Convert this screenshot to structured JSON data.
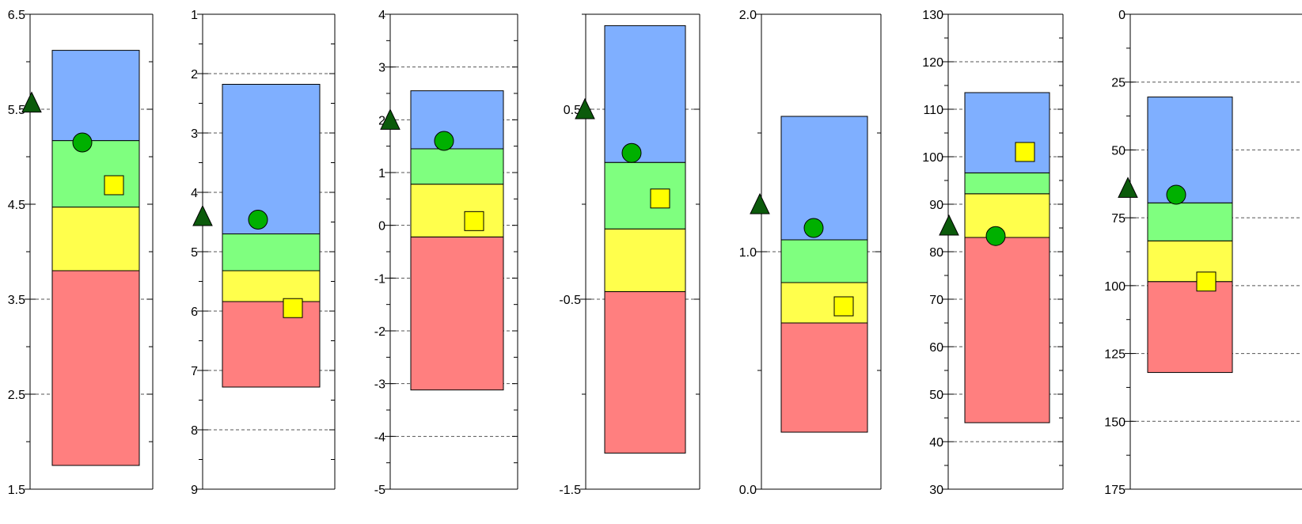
{
  "chart_data": [
    {
      "type": "bar",
      "title": "",
      "xlabel": "",
      "ylabel": "",
      "ylim": [
        1.5,
        6.5
      ],
      "reversed": false,
      "major_ticks": [
        1.5,
        2.5,
        3.5,
        4.5,
        5.5,
        6.5
      ],
      "tick_labels": [
        "1.5",
        "2.5",
        "3.5",
        "4.5",
        "5.5",
        "6.5"
      ],
      "minor_ticks": [
        2.0,
        3.0,
        4.0,
        5.0,
        6.0
      ],
      "dashed_lines": [
        5.5,
        3.5,
        2.5
      ],
      "bands": [
        {
          "color": "red",
          "from": 1.75,
          "to": 3.8
        },
        {
          "color": "yellow",
          "from": 3.8,
          "to": 4.47
        },
        {
          "color": "green",
          "from": 4.47,
          "to": 5.17
        },
        {
          "color": "blue",
          "from": 5.17,
          "to": 6.12
        }
      ],
      "markers": {
        "triangle": 5.57,
        "circle": 5.15,
        "square": 4.7
      }
    },
    {
      "type": "bar",
      "title": "",
      "xlabel": "",
      "ylabel": "",
      "ylim": [
        1,
        9
      ],
      "reversed": true,
      "major_ticks": [
        1,
        2,
        3,
        4,
        5,
        6,
        7,
        8,
        9
      ],
      "tick_labels": [
        "1",
        "2",
        "3",
        "4",
        "5",
        "6",
        "7",
        "8",
        "9"
      ],
      "minor_ticks": [
        1.5,
        2.5,
        3.5,
        4.5,
        5.5,
        6.5,
        7.5,
        8.5
      ],
      "dashed_lines": [
        2,
        3,
        4,
        5,
        6,
        7,
        8
      ],
      "bands": [
        {
          "color": "red",
          "from": 5.84,
          "to": 7.28
        },
        {
          "color": "yellow",
          "from": 5.32,
          "to": 5.84
        },
        {
          "color": "green",
          "from": 4.7,
          "to": 5.32
        },
        {
          "color": "blue",
          "from": 2.18,
          "to": 4.7
        }
      ],
      "markers": {
        "triangle": 4.4,
        "circle": 4.46,
        "square": 5.95
      }
    },
    {
      "type": "bar",
      "title": "",
      "xlabel": "",
      "ylabel": "",
      "ylim": [
        -5,
        4
      ],
      "reversed": false,
      "major_ticks": [
        -5,
        -4,
        -3,
        -2,
        -1,
        0,
        1,
        2,
        3,
        4
      ],
      "tick_labels": [
        "-5",
        "-4",
        "-3",
        "-2",
        "-1",
        "0",
        "1",
        "2",
        "3",
        "4"
      ],
      "minor_ticks": [
        -4.5,
        -3.5,
        -2.5,
        -1.5,
        -0.5,
        0.5,
        1.5,
        2.5,
        3.5
      ],
      "dashed_lines": [
        3,
        2,
        1,
        0,
        -1,
        -2,
        -3,
        -4
      ],
      "bands": [
        {
          "color": "red",
          "from": -3.12,
          "to": -0.22
        },
        {
          "color": "yellow",
          "from": -0.22,
          "to": 0.78
        },
        {
          "color": "green",
          "from": 0.78,
          "to": 1.45
        },
        {
          "color": "blue",
          "from": 1.45,
          "to": 2.55
        }
      ],
      "markers": {
        "triangle": 2.0,
        "circle": 1.6,
        "square": 0.08
      }
    },
    {
      "type": "bar",
      "title": "",
      "xlabel": "",
      "ylabel": "",
      "ylim": [
        -1.5,
        1.0
      ],
      "reversed": false,
      "major_ticks": [
        -1.5,
        -0.5,
        0.5
      ],
      "tick_labels": [
        "-1.5",
        "-0.5",
        "0.5"
      ],
      "minor_ticks": [
        -1.0,
        0.0,
        1.0
      ],
      "dashed_lines": [
        0.5,
        -0.5
      ],
      "bands": [
        {
          "color": "red",
          "from": -1.31,
          "to": -0.46
        },
        {
          "color": "yellow",
          "from": -0.46,
          "to": -0.13
        },
        {
          "color": "green",
          "from": -0.13,
          "to": 0.22
        },
        {
          "color": "blue",
          "from": 0.22,
          "to": 0.94
        }
      ],
      "markers": {
        "triangle": 0.5,
        "circle": 0.27,
        "square": 0.03
      }
    },
    {
      "type": "bar",
      "title": "",
      "xlabel": "",
      "ylabel": "",
      "ylim": [
        0.0,
        2.0
      ],
      "reversed": false,
      "major_ticks": [
        0.0,
        1.0,
        2.0
      ],
      "tick_labels": [
        "0.0",
        "1.0",
        "2.0"
      ],
      "minor_ticks": [
        0.5,
        1.5
      ],
      "dashed_lines": [
        1.0
      ],
      "bands": [
        {
          "color": "red",
          "from": 0.24,
          "to": 0.7
        },
        {
          "color": "yellow",
          "from": 0.7,
          "to": 0.87
        },
        {
          "color": "green",
          "from": 0.87,
          "to": 1.05
        },
        {
          "color": "blue",
          "from": 1.05,
          "to": 1.57
        }
      ],
      "markers": {
        "triangle": 1.2,
        "circle": 1.1,
        "square": 0.77
      }
    },
    {
      "type": "bar",
      "title": "",
      "xlabel": "",
      "ylabel": "",
      "ylim": [
        30,
        130
      ],
      "reversed": false,
      "major_ticks": [
        30,
        40,
        50,
        60,
        70,
        80,
        90,
        100,
        110,
        120,
        130
      ],
      "tick_labels": [
        "30",
        "40",
        "50",
        "60",
        "70",
        "80",
        "90",
        "100",
        "110",
        "120",
        "130"
      ],
      "minor_ticks": [
        35,
        45,
        55,
        65,
        75,
        85,
        95,
        105,
        115,
        125
      ],
      "dashed_lines": [
        120,
        110,
        100,
        90,
        80,
        70,
        60,
        50,
        40
      ],
      "bands": [
        {
          "color": "red",
          "from": 44,
          "to": 83
        },
        {
          "color": "yellow",
          "from": 83,
          "to": 92.2
        },
        {
          "color": "green",
          "from": 92.2,
          "to": 96.6
        },
        {
          "color": "blue",
          "from": 96.6,
          "to": 113.5
        }
      ],
      "markers": {
        "triangle": 85.5,
        "circle": 83.3,
        "square": 101
      }
    },
    {
      "type": "bar",
      "title": "",
      "xlabel": "",
      "ylabel": "",
      "ylim": [
        0,
        175
      ],
      "reversed": true,
      "major_ticks": [
        0,
        25,
        50,
        75,
        100,
        125,
        150,
        175
      ],
      "tick_labels": [
        "0",
        "25",
        "50",
        "75",
        "100",
        "125",
        "150",
        "175"
      ],
      "minor_ticks": [
        12.5,
        37.5,
        62.5,
        87.5,
        112.5,
        137.5,
        162.5
      ],
      "dashed_lines": [
        25,
        50,
        75,
        100,
        125,
        150
      ],
      "bands": [
        {
          "color": "red",
          "from": 98.5,
          "to": 132
        },
        {
          "color": "yellow",
          "from": 83.5,
          "to": 98.5
        },
        {
          "color": "green",
          "from": 69.5,
          "to": 83.5
        },
        {
          "color": "blue",
          "from": 30.5,
          "to": 69.5
        }
      ],
      "markers": {
        "triangle": 64,
        "circle": 66.5,
        "square": 98.5
      }
    }
  ],
  "colors": {
    "red": "#FF7F7F",
    "yellow": "#FFFF4C",
    "green": "#7FFF7F",
    "blue": "#7FAFFF",
    "triangle": "#0B5A0B",
    "circle": "#00B000",
    "square": "#FFFF00",
    "axis": "#000000",
    "dashed": "#555555"
  },
  "icons": {
    "triangle": "triangle-marker-icon",
    "circle": "circle-marker-icon",
    "square": "square-marker-icon"
  }
}
